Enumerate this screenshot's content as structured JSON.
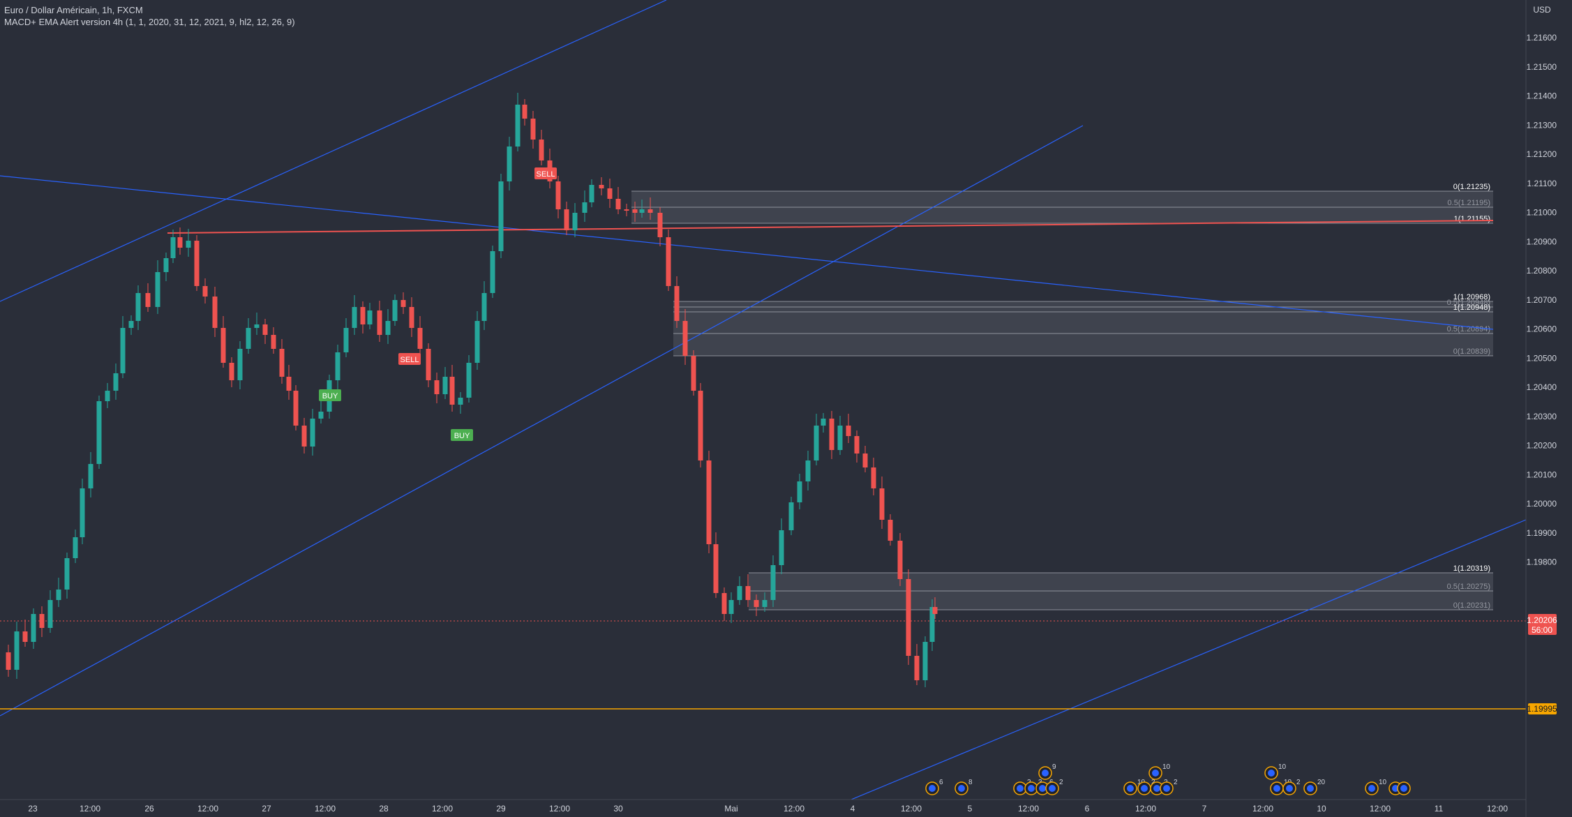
{
  "header": {
    "symbol_line": "Euro / Dollar Américain, 1h, FXCM",
    "indicator_line": "MACD+ EMA Alert version 4h (1, 1, 2020, 31, 12, 2021, 9, hl2, 12, 26, 9)"
  },
  "price_axis": {
    "currency": "USD",
    "ticks": [
      "1.21600",
      "1.21500",
      "1.21400",
      "1.21300",
      "1.21200",
      "1.21100",
      "1.21000",
      "1.20900",
      "1.20800",
      "1.20700",
      "1.20600",
      "1.20500",
      "1.20400",
      "1.20300",
      "1.20200",
      "1.20100",
      "1.20000",
      "1.19900",
      "1.19800"
    ],
    "last_price": "1.20206",
    "countdown": "56:00",
    "support_price": "1.19995"
  },
  "time_axis": {
    "ticks": [
      "23",
      "12:00",
      "26",
      "12:00",
      "27",
      "12:00",
      "28",
      "12:00",
      "29",
      "12:00",
      "30",
      "Mai",
      "12:00",
      "4",
      "12:00",
      "5",
      "12:00",
      "6",
      "12:00",
      "7",
      "12:00",
      "10",
      "12:00",
      "11",
      "12:00"
    ]
  },
  "fib_zones": [
    {
      "labels": [
        "0(1.21235)",
        "0.5(1.21195)",
        "1(1.21155)"
      ]
    },
    {
      "labels": [
        "1(1.20968)",
        "0.5(1.20948)",
        "1(1.20948)",
        "0.5(1.20894)",
        "0(1.20839)"
      ]
    },
    {
      "labels": [
        "1(1.20319)",
        "0.5(1.20275)",
        "0(1.20231)"
      ]
    }
  ],
  "signals": [
    {
      "text": "SELL",
      "type": "sell"
    },
    {
      "text": "SELL",
      "type": "sell"
    },
    {
      "text": "BUY",
      "type": "buy"
    },
    {
      "text": "BUY",
      "type": "buy"
    }
  ],
  "event_counts": [
    "6",
    "8",
    "2",
    "3",
    "6",
    "2",
    "9",
    "10",
    "2",
    "2",
    "2",
    "10",
    "10",
    "10",
    "2",
    "20",
    "10"
  ],
  "colors": {
    "background": "#2a2e39",
    "up_candle": "#26a69a",
    "down_candle": "#ef5350",
    "trendline": "#2962ff",
    "support": "#f7a600",
    "resistance": "#ef5350"
  }
}
